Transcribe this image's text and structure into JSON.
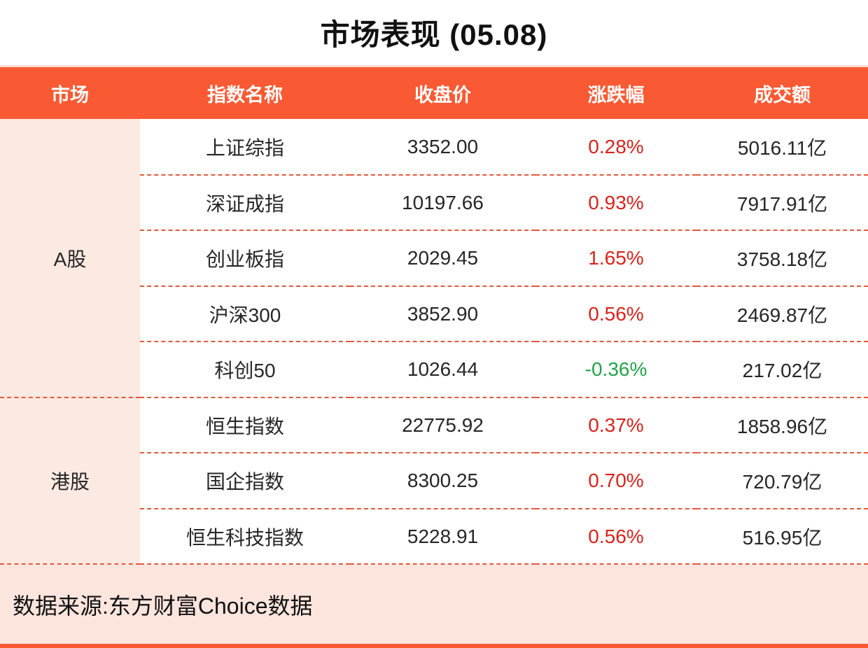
{
  "title": "市场表现 (05.08)",
  "table": {
    "headers": [
      "市场",
      "指数名称",
      "收盘价",
      "涨跌幅",
      "成交额"
    ],
    "groups": [
      {
        "market": "A股",
        "rows": [
          {
            "name": "上证综指",
            "close": "3352.00",
            "change": "0.28%",
            "direction": "up",
            "turnover": "5016.11亿"
          },
          {
            "name": "深证成指",
            "close": "10197.66",
            "change": "0.93%",
            "direction": "up",
            "turnover": "7917.91亿"
          },
          {
            "name": "创业板指",
            "close": "2029.45",
            "change": "1.65%",
            "direction": "up",
            "turnover": "3758.18亿"
          },
          {
            "name": "沪深300",
            "close": "3852.90",
            "change": "0.56%",
            "direction": "up",
            "turnover": "2469.87亿"
          },
          {
            "name": "科创50",
            "close": "1026.44",
            "change": "-0.36%",
            "direction": "down",
            "turnover": "217.02亿"
          }
        ]
      },
      {
        "market": "港股",
        "rows": [
          {
            "name": "恒生指数",
            "close": "22775.92",
            "change": "0.37%",
            "direction": "up",
            "turnover": "1858.96亿"
          },
          {
            "name": "国企指数",
            "close": "8300.25",
            "change": "0.70%",
            "direction": "up",
            "turnover": "720.79亿"
          },
          {
            "name": "恒生科技指数",
            "close": "5228.91",
            "change": "0.56%",
            "direction": "up",
            "turnover": "516.95亿"
          }
        ]
      }
    ]
  },
  "footer": {
    "source": "数据来源:东方财富Choice数据"
  },
  "colors": {
    "accent": "#f95a33",
    "up": "#d7231d",
    "down": "#23a14a",
    "market_column_bg": "#fce9e1",
    "footer_bg": "#fce5dd",
    "dashed_divider": "#e2593c"
  },
  "chart_data": {
    "type": "table",
    "title": "市场表现 (05.08)",
    "columns": [
      "市场",
      "指数名称",
      "收盘价",
      "涨跌幅",
      "成交额"
    ],
    "rows": [
      [
        "A股",
        "上证综指",
        3352.0,
        0.28,
        "5016.11亿"
      ],
      [
        "A股",
        "深证成指",
        10197.66,
        0.93,
        "7917.91亿"
      ],
      [
        "A股",
        "创业板指",
        2029.45,
        1.65,
        "3758.18亿"
      ],
      [
        "A股",
        "沪深300",
        3852.9,
        0.56,
        "2469.87亿"
      ],
      [
        "A股",
        "科创50",
        1026.44,
        -0.36,
        "217.02亿"
      ],
      [
        "港股",
        "恒生指数",
        22775.92,
        0.37,
        "1858.96亿"
      ],
      [
        "港股",
        "国企指数",
        8300.25,
        0.7,
        "720.79亿"
      ],
      [
        "港股",
        "恒生科技指数",
        5228.91,
        0.56,
        "516.95亿"
      ]
    ]
  }
}
